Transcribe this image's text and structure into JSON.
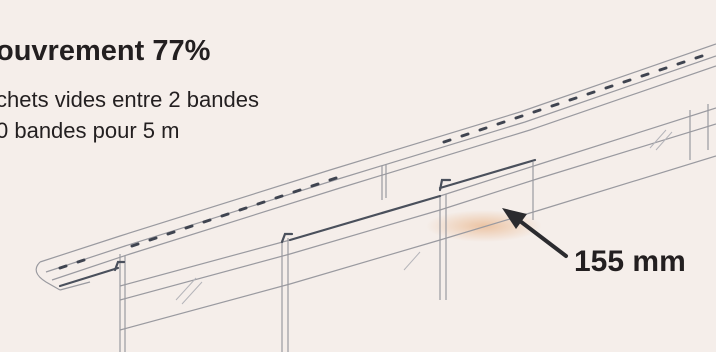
{
  "caption": {
    "title": "ouvrement 77%",
    "line1": "chets vides entre 2 bandes",
    "line2": "0 bandes pour 5 m"
  },
  "dimension": {
    "label": "155 mm"
  },
  "colors": {
    "background": "#f5eeea",
    "text": "#231f20",
    "sketch_line": "#8e8e93",
    "sketch_dark": "#3f4450",
    "arrow": "#2b2b2f",
    "highlight": "#e9b68c"
  }
}
